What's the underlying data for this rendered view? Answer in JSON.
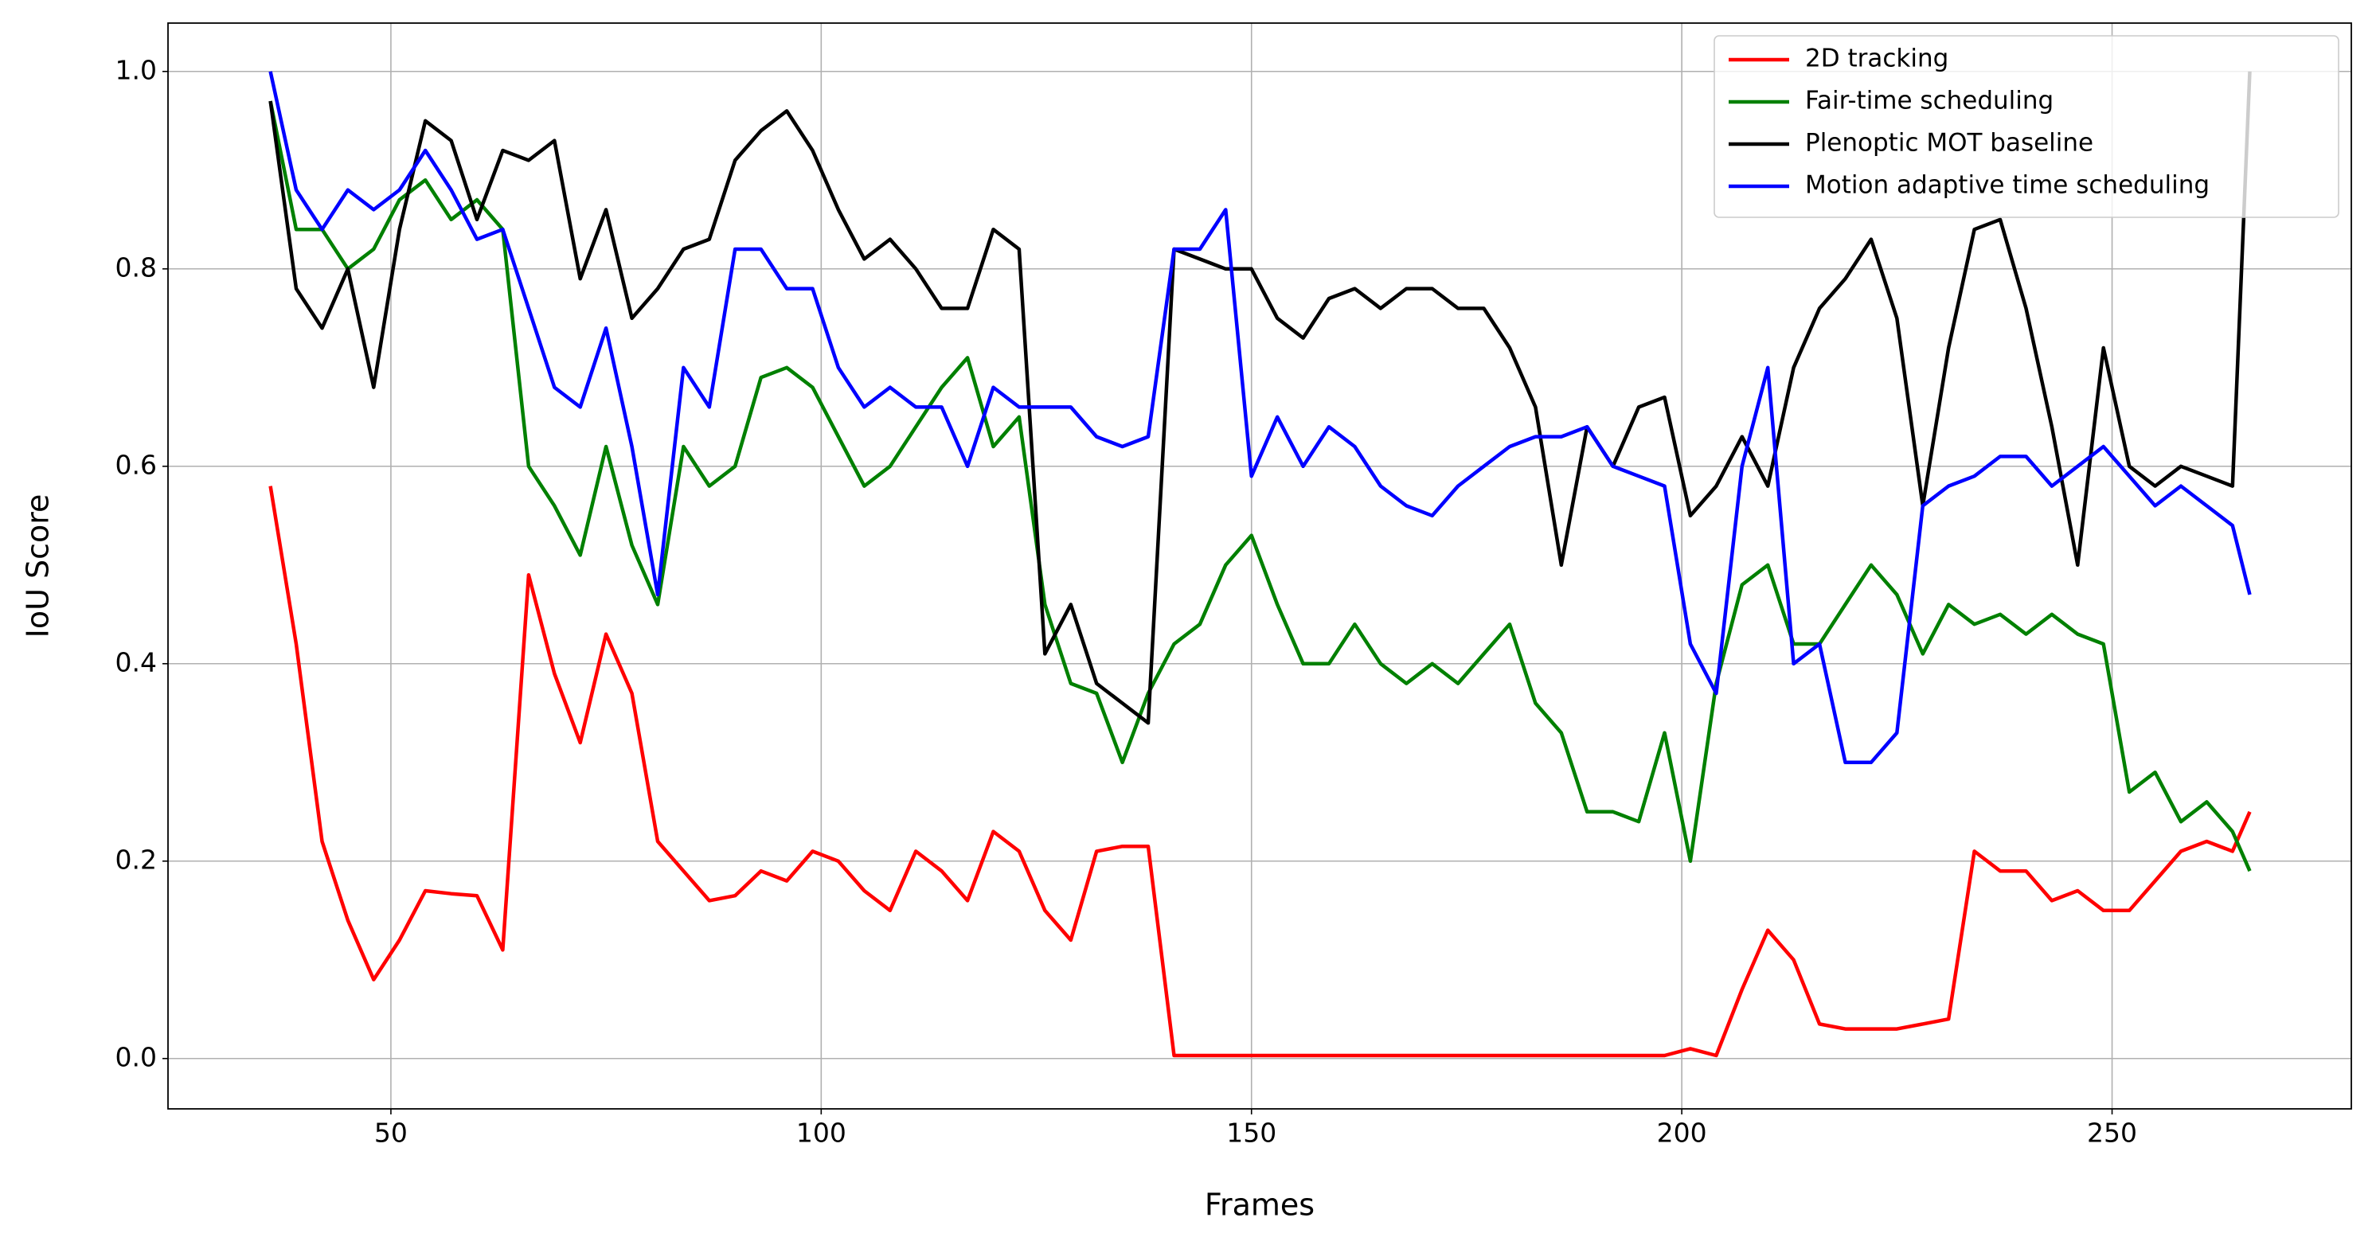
{
  "chart_data": {
    "type": "line",
    "xlabel": "Frames",
    "ylabel": "IoU Score",
    "x": [
      36,
      39,
      42,
      45,
      48,
      51,
      54,
      57,
      60,
      63,
      66,
      69,
      72,
      75,
      78,
      81,
      84,
      87,
      90,
      93,
      96,
      99,
      102,
      105,
      108,
      111,
      114,
      117,
      120,
      123,
      126,
      129,
      132,
      135,
      138,
      141,
      144,
      147,
      150,
      153,
      156,
      159,
      162,
      165,
      168,
      171,
      174,
      177,
      180,
      183,
      186,
      189,
      192,
      195,
      198,
      201,
      204,
      207,
      210,
      213,
      216,
      219,
      222,
      225,
      228,
      231,
      234,
      237,
      240,
      243,
      246,
      249,
      252,
      255,
      258,
      261,
      264,
      266
    ],
    "series": [
      {
        "name": "2D tracking",
        "color": "#ff0000",
        "values": [
          0.58,
          0.42,
          0.22,
          0.14,
          0.08,
          0.12,
          0.17,
          0.167,
          0.165,
          0.11,
          0.49,
          0.39,
          0.32,
          0.43,
          0.37,
          0.22,
          0.19,
          0.16,
          0.165,
          0.19,
          0.18,
          0.21,
          0.2,
          0.17,
          0.15,
          0.21,
          0.19,
          0.16,
          0.23,
          0.21,
          0.15,
          0.12,
          0.21,
          0.215,
          0.215,
          0.003,
          0.003,
          0.003,
          0.003,
          0.003,
          0.003,
          0.003,
          0.003,
          0.003,
          0.003,
          0.003,
          0.003,
          0.003,
          0.003,
          0.003,
          0.003,
          0.003,
          0.003,
          0.003,
          0.003,
          0.01,
          0.003,
          0.07,
          0.13,
          0.1,
          0.035,
          0.03,
          0.03,
          0.03,
          0.035,
          0.04,
          0.21,
          0.19,
          0.19,
          0.16,
          0.17,
          0.15,
          0.15,
          0.18,
          0.21,
          0.22,
          0.21,
          0.25
        ]
      },
      {
        "name": "Fair-time scheduling",
        "color": "#008000",
        "values": [
          0.97,
          0.84,
          0.84,
          0.8,
          0.82,
          0.87,
          0.89,
          0.85,
          0.87,
          0.84,
          0.6,
          0.56,
          0.51,
          0.62,
          0.52,
          0.46,
          0.62,
          0.58,
          0.6,
          0.69,
          0.7,
          0.68,
          0.63,
          0.58,
          0.6,
          0.64,
          0.68,
          0.71,
          0.62,
          0.65,
          0.46,
          0.38,
          0.37,
          0.3,
          0.37,
          0.42,
          0.44,
          0.5,
          0.53,
          0.46,
          0.4,
          0.4,
          0.44,
          0.4,
          0.38,
          0.4,
          0.38,
          0.41,
          0.44,
          0.36,
          0.33,
          0.25,
          0.25,
          0.24,
          0.33,
          0.2,
          0.38,
          0.48,
          0.5,
          0.42,
          0.42,
          0.46,
          0.5,
          0.47,
          0.41,
          0.46,
          0.44,
          0.45,
          0.43,
          0.45,
          0.43,
          0.42,
          0.27,
          0.29,
          0.24,
          0.26,
          0.23,
          0.19
        ]
      },
      {
        "name": "Plenoptic MOT baseline",
        "color": "#000000",
        "values": [
          0.97,
          0.78,
          0.74,
          0.8,
          0.68,
          0.84,
          0.95,
          0.93,
          0.85,
          0.92,
          0.91,
          0.93,
          0.79,
          0.86,
          0.75,
          0.78,
          0.82,
          0.83,
          0.91,
          0.94,
          0.96,
          0.92,
          0.86,
          0.81,
          0.83,
          0.8,
          0.76,
          0.76,
          0.84,
          0.82,
          0.41,
          0.46,
          0.38,
          0.36,
          0.34,
          0.82,
          0.81,
          0.8,
          0.8,
          0.75,
          0.73,
          0.77,
          0.78,
          0.76,
          0.78,
          0.78,
          0.76,
          0.76,
          0.72,
          0.66,
          0.5,
          0.64,
          0.6,
          0.66,
          0.67,
          0.55,
          0.58,
          0.63,
          0.58,
          0.7,
          0.76,
          0.79,
          0.83,
          0.75,
          0.56,
          0.72,
          0.84,
          0.85,
          0.76,
          0.64,
          0.5,
          0.72,
          0.6,
          0.58,
          0.6,
          0.59,
          0.58,
          1.0
        ]
      },
      {
        "name": "Motion adaptive time scheduling",
        "color": "#0000ff",
        "values": [
          1.0,
          0.88,
          0.84,
          0.88,
          0.86,
          0.88,
          0.92,
          0.88,
          0.83,
          0.84,
          0.76,
          0.68,
          0.66,
          0.74,
          0.62,
          0.47,
          0.7,
          0.66,
          0.82,
          0.82,
          0.78,
          0.78,
          0.7,
          0.66,
          0.68,
          0.66,
          0.66,
          0.6,
          0.68,
          0.66,
          0.66,
          0.66,
          0.63,
          0.62,
          0.63,
          0.82,
          0.82,
          0.86,
          0.59,
          0.65,
          0.6,
          0.64,
          0.62,
          0.58,
          0.56,
          0.55,
          0.58,
          0.6,
          0.62,
          0.63,
          0.63,
          0.64,
          0.6,
          0.59,
          0.58,
          0.42,
          0.37,
          0.6,
          0.7,
          0.4,
          0.42,
          0.3,
          0.3,
          0.33,
          0.56,
          0.58,
          0.59,
          0.61,
          0.61,
          0.58,
          0.6,
          0.62,
          0.59,
          0.56,
          0.58,
          0.56,
          0.54,
          0.47
        ]
      }
    ],
    "xlim": [
      24.1,
      277.8
    ],
    "ylim": [
      -0.051,
      1.049
    ],
    "xticks": [
      50,
      100,
      150,
      200,
      250
    ],
    "yticks": [
      {
        "value": 0,
        "label": "0.0"
      },
      0.2,
      0.4,
      0.6,
      0.8,
      {
        "value": 1,
        "label": "1.0"
      }
    ],
    "grid": true,
    "legend": "upper right"
  }
}
